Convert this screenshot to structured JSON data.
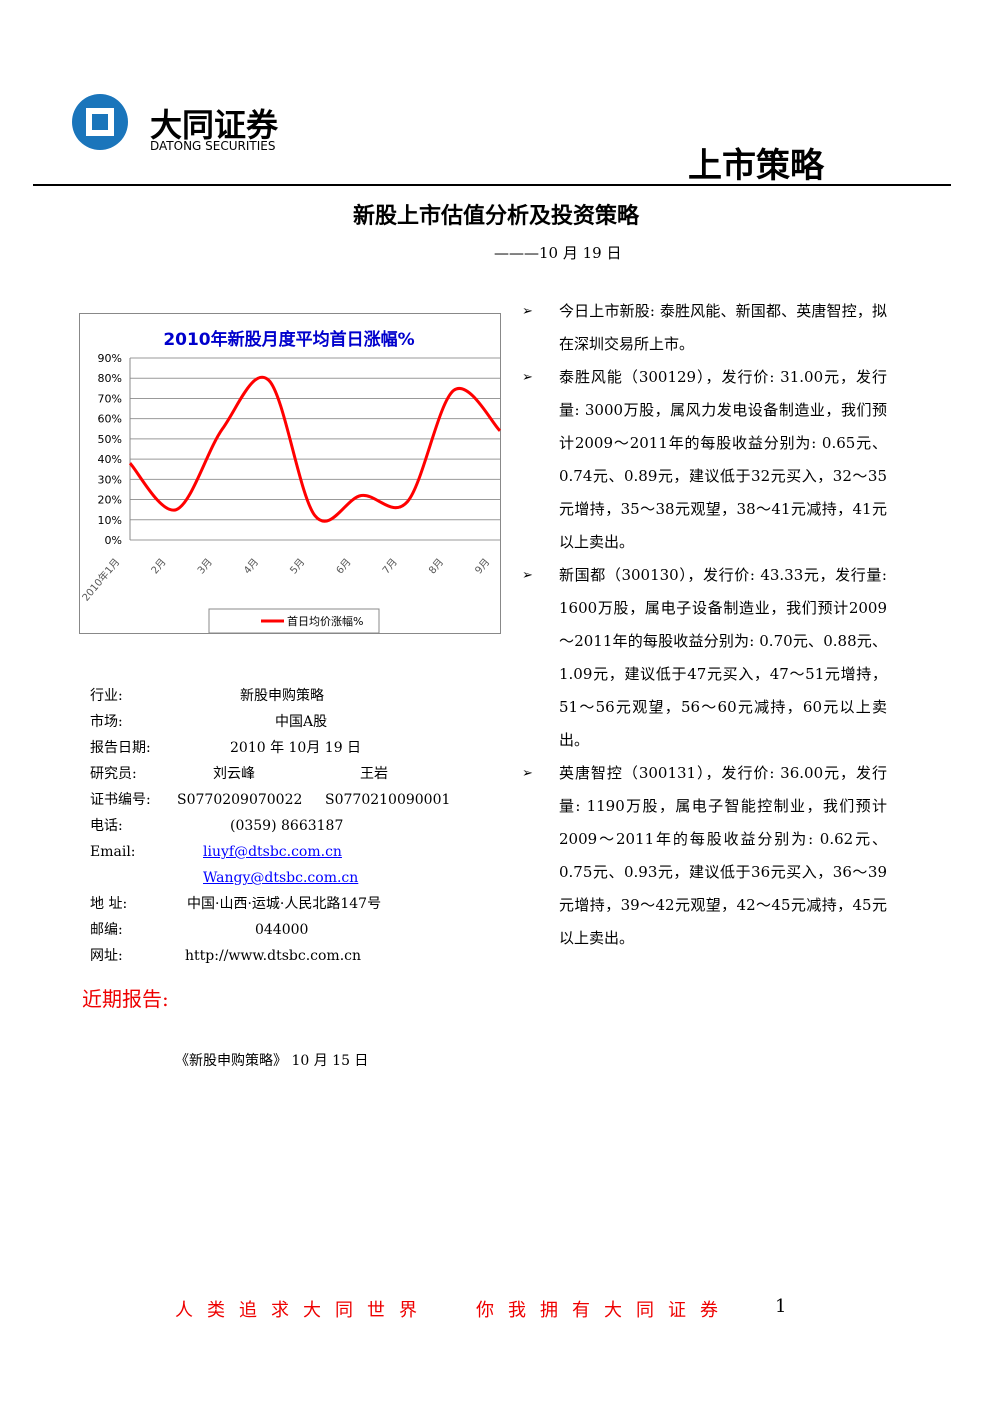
{
  "header": {
    "company": "大同证券",
    "company_en": "DATONG SECURITIES",
    "section": "上市策略"
  },
  "title": "新股上市估值分析及投资策略",
  "date": "———10 月 19 日",
  "chart_data": {
    "type": "line",
    "title": "2010年新股月度平均首日涨幅%",
    "categories": [
      "2010年1月",
      "2月",
      "3月",
      "4月",
      "5月",
      "6月",
      "7月",
      "8月",
      "9月"
    ],
    "series": [
      {
        "name": "首日均价涨幅%",
        "color": "#ff0000",
        "values": [
          38,
          15,
          55,
          79,
          12,
          22,
          19,
          74,
          54
        ]
      }
    ],
    "ylim": [
      0,
      90
    ],
    "yticks": [
      {
        "value": 0,
        "label": "0%"
      },
      {
        "value": 10,
        "label": "10%"
      },
      {
        "value": 20,
        "label": "20%"
      },
      {
        "value": 30,
        "label": "30%"
      },
      {
        "value": 40,
        "label": "40%"
      },
      {
        "value": 50,
        "label": "50%"
      },
      {
        "value": 60,
        "label": "60%"
      },
      {
        "value": 70,
        "label": "70%"
      },
      {
        "value": 80,
        "label": "80%"
      },
      {
        "value": 90,
        "label": "90%"
      }
    ],
    "grid": true,
    "legend": "bottom"
  },
  "info": [
    {
      "label": "行业:",
      "values": [
        "新股申购策略"
      ]
    },
    {
      "label": "市场:",
      "values": [
        "中国A股"
      ]
    },
    {
      "label": "报告日期:",
      "values": [
        "2010 年 10月 19 日"
      ]
    },
    {
      "label": "研究员:",
      "values": [
        "刘云峰",
        "王岩"
      ]
    },
    {
      "label": "证书编号:",
      "values": [
        "S0770209070022",
        "S0770210090001"
      ]
    },
    {
      "label": "电话:",
      "values": [
        "(0359) 8663187"
      ]
    },
    {
      "label": "Email:",
      "values": [
        "liuyf@dtsbc.com.cn",
        "Wangy@dtsbc.com.cn"
      ]
    },
    {
      "label": "地 址:",
      "values": [
        "中国·山西·运城·人民北路147号"
      ]
    },
    {
      "label": "邮编:",
      "values": [
        "044000"
      ]
    },
    {
      "label": "网址:",
      "values": [
        "http://www.dtsbc.com.cn"
      ]
    }
  ],
  "recent": {
    "heading": "近期报告:",
    "items": [
      "《新股申购策略》 10 月 15 日"
    ]
  },
  "bullets": [
    "今日上市新股: 泰胜风能、新国都、英唐智控，拟在深圳交易所上市。",
    "泰胜风能（300129），发行价: 31.00元，发行量: 3000万股，属风力发电设备制造业，我们预计2009～2011年的每股收益分别为: 0.65元、0.74元、0.89元，建议低于32元买入，32～35元增持，35～38元观望，38～41元减持，41元以上卖出。",
    "新国都（300130），发行价: 43.33元，发行量: 1600万股，属电子设备制造业，我们预计2009～2011年的每股收益分别为: 0.70元、0.88元、1.09元，建议低于47元买入，47～51元增持，51～56元观望，56～60元减持，60元以上卖出。",
    "英唐智控（300131），发行价: 36.00元，发行量: 1190万股，属电子智能控制业，我们预计2009～2011年的每股收益分别为: 0.62元、0.75元、0.93元，建议低于36元买入，36～39元增持，39～42元观望，42～45元减持，45元以上卖出。"
  ],
  "footer": {
    "left": "人类追求大同世界",
    "right": "你我拥有大同证券",
    "page": "1"
  }
}
